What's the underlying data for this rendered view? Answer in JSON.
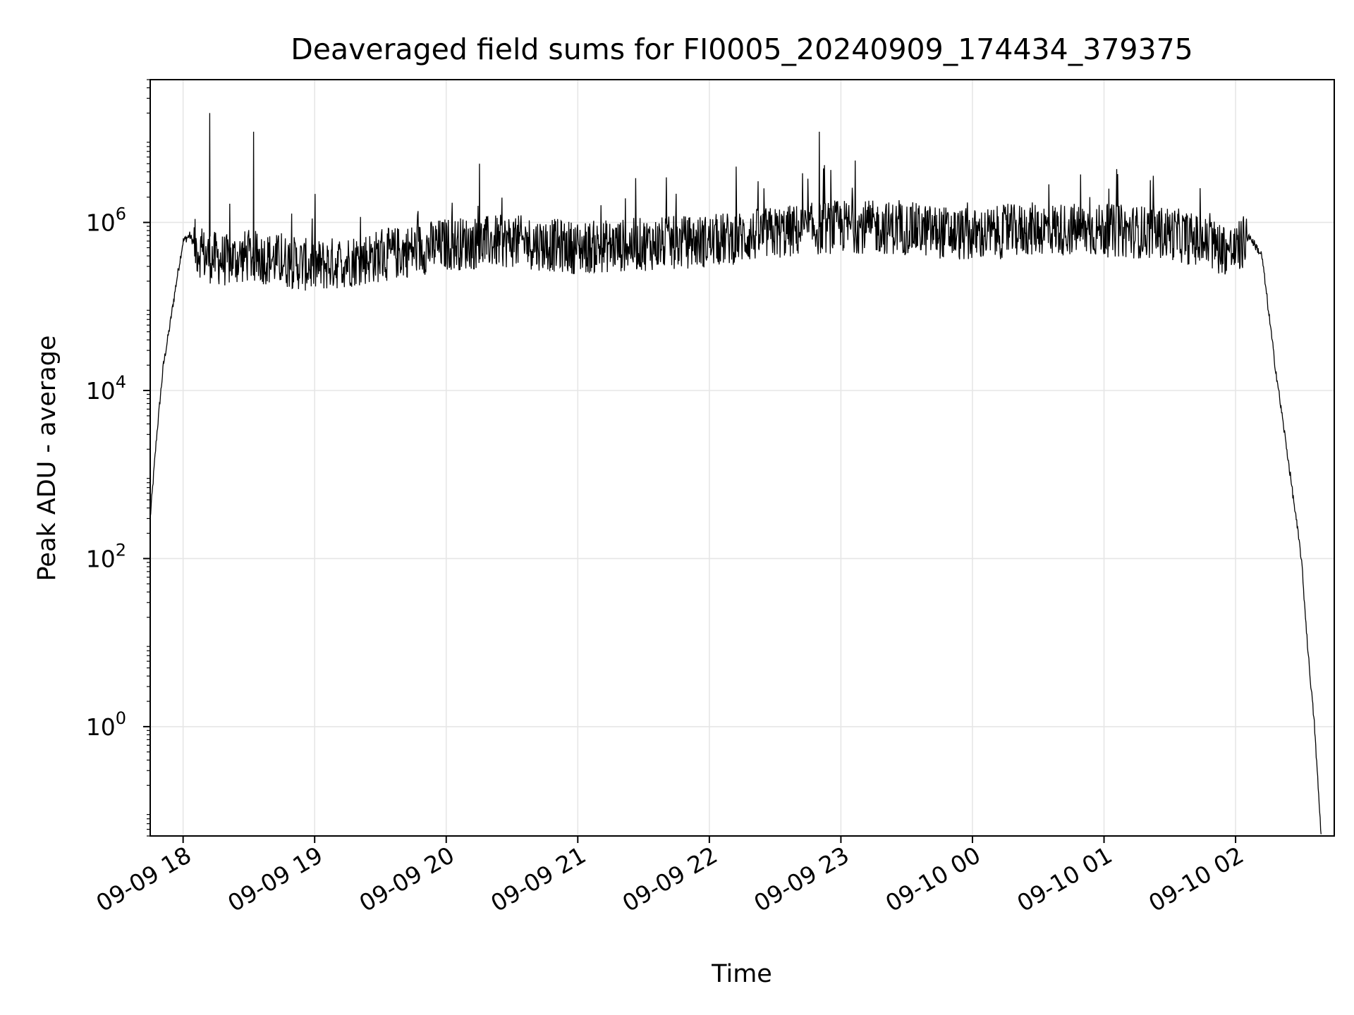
{
  "chart_data": {
    "type": "line",
    "title": "Deaveraged field sums for FI0005_20240909_174434_379375",
    "xlabel": "Time",
    "ylabel": "Peak ADU - average",
    "yscale": "log",
    "grid": true,
    "legend": "none",
    "xlim": [
      "2024-09-09 17:45",
      "2024-09-10 02:45"
    ],
    "ylim": [
      0.05,
      50000000
    ],
    "xticks": [
      "09-09 18",
      "09-09 19",
      "09-09 20",
      "09-09 21",
      "09-09 22",
      "09-09 23",
      "09-10 00",
      "09-10 01",
      "09-10 02"
    ],
    "yticks": [
      {
        "value": 1,
        "base": "10",
        "exp": "0"
      },
      {
        "value": 100,
        "base": "10",
        "exp": "2"
      },
      {
        "value": 10000,
        "base": "10",
        "exp": "4"
      },
      {
        "value": 1000000,
        "base": "10",
        "exp": "6"
      }
    ],
    "series": [
      {
        "line_color": "#000000",
        "x": [
          "2024-09-09 17:45",
          "2024-09-09 17:48",
          "2024-09-09 17:51",
          "2024-09-09 17:54",
          "2024-09-09 17:57",
          "2024-09-09 18:00",
          "2024-09-09 18:03",
          "2024-09-09 18:06",
          "2024-09-09 18:10",
          "2024-09-09 18:20",
          "2024-09-09 18:30",
          "2024-09-09 18:45",
          "2024-09-09 19:00",
          "2024-09-09 19:30",
          "2024-09-09 20:00",
          "2024-09-09 20:30",
          "2024-09-09 21:00",
          "2024-09-09 21:30",
          "2024-09-09 22:00",
          "2024-09-09 22:30",
          "2024-09-09 23:00",
          "2024-09-09 23:30",
          "2024-09-10 00:00",
          "2024-09-10 00:30",
          "2024-09-10 01:00",
          "2024-09-10 01:30",
          "2024-09-10 02:00",
          "2024-09-10 02:06",
          "2024-09-10 02:12",
          "2024-09-10 02:18",
          "2024-09-10 02:24",
          "2024-09-10 02:30",
          "2024-09-10 02:33",
          "2024-09-10 02:36",
          "2024-09-10 02:39"
        ],
        "y": [
          300,
          3000,
          20000,
          60000,
          200000,
          600000,
          700000,
          500000,
          400000,
          350000,
          400000,
          350000,
          300000,
          400000,
          550000,
          600000,
          500000,
          550000,
          600000,
          750000,
          900000,
          850000,
          700000,
          850000,
          800000,
          750000,
          450000,
          700000,
          400000,
          20000,
          1500,
          100,
          8,
          1,
          0.05
        ],
        "spikes": [
          {
            "x": "2024-09-09 18:12",
            "y": 20000000
          },
          {
            "x": "2024-09-09 18:32",
            "y": 12000000
          },
          {
            "x": "2024-09-09 20:15",
            "y": 5000000
          },
          {
            "x": "2024-09-09 22:50",
            "y": 12000000
          }
        ]
      }
    ]
  }
}
